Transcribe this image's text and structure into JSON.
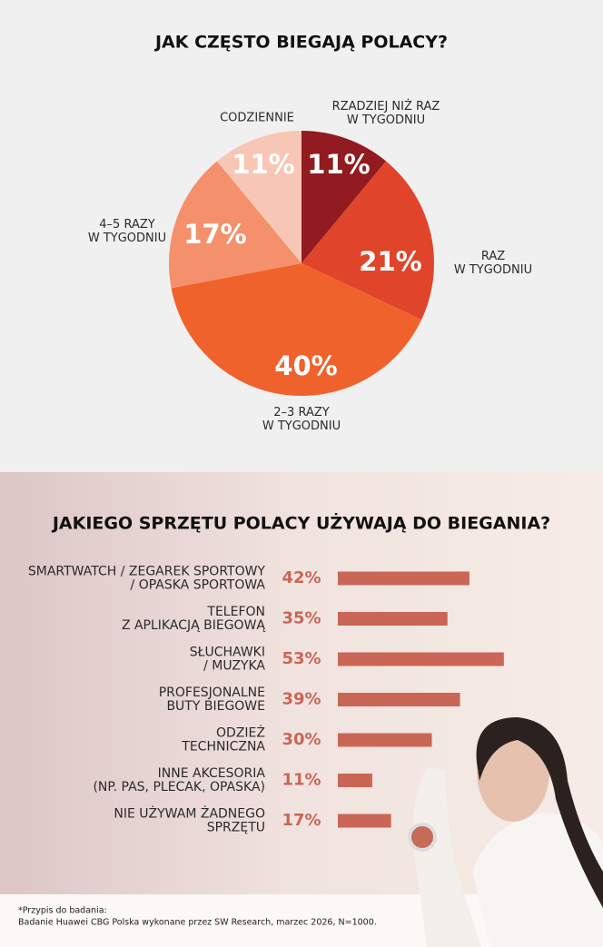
{
  "charts_title_note": null,
  "chart_data": [
    {
      "type": "pie",
      "title": "JAK CZĘSTO BIEGAJĄ POLACY?",
      "categories": [
        [
          "RZADZIEJ NIŻ RAZ",
          "W TYGODNIU"
        ],
        [
          "RAZ",
          "W TYGODNIU"
        ],
        [
          "2–3 RAZY",
          "W TYGODNIU"
        ],
        [
          "4–5 RAZY",
          "W TYGODNIU"
        ],
        [
          "CODZIENNIE"
        ]
      ],
      "values": [
        11,
        21,
        40,
        17,
        11
      ],
      "value_labels": [
        "11%",
        "21%",
        "40%",
        "17%",
        "11%"
      ],
      "colors": [
        "#911b20",
        "#e0452b",
        "#f0622b",
        "#f4906b",
        "#f8c6b4"
      ]
    },
    {
      "type": "bar",
      "orientation": "horizontal",
      "title": "JAKIEGO SPRZĘTU POLACY UŻYWAJĄ DO BIEGANIA?",
      "categories": [
        [
          "SMARTWATCH / ZEGAREK SPORTOWY",
          "/ OPASKA SPORTOWA"
        ],
        [
          "TELEFON",
          "Z APLIKACJĄ BIEGOWĄ"
        ],
        [
          "SŁUCHAWKI",
          "/ MUZYKA"
        ],
        [
          "PROFESJONALNE",
          "BUTY BIEGOWE"
        ],
        [
          "ODZIEŻ",
          "TECHNICZNA"
        ],
        [
          "INNE AKCESORIA",
          "(NP. PAS, PLECAK, OPASKA)"
        ],
        [
          "NIE UŻYWAM ŻADNEGO",
          "SPRZĘTU"
        ]
      ],
      "values": [
        42,
        35,
        53,
        39,
        30,
        11,
        17
      ],
      "value_labels": [
        "42%",
        "35%",
        "53%",
        "39%",
        "30%",
        "11%",
        "17%"
      ],
      "color": "#c96655"
    }
  ],
  "footnote": [
    "*Przypis do badania:",
    "Badanie Huawei CBG Polska wykonane przez SW Research, marzec 2026, N=1000."
  ]
}
